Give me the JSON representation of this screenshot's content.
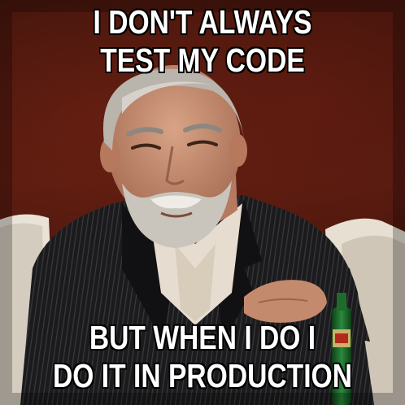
{
  "meme": {
    "top_text": [
      "I DON'T ALWAYS",
      "TEST MY CODE"
    ],
    "bottom_text": [
      "BUT WHEN I DO I",
      "DO IT IN PRODUCTION"
    ]
  },
  "colors": {
    "background": "#3b130b",
    "suit": "#1b1b1d",
    "shirt": "#e6ddd0",
    "skin": "#c69075",
    "hair": "#b9b4ac",
    "bottle": "#1e6b2c",
    "caption_fill": "#ffffff",
    "caption_stroke": "#000000"
  }
}
